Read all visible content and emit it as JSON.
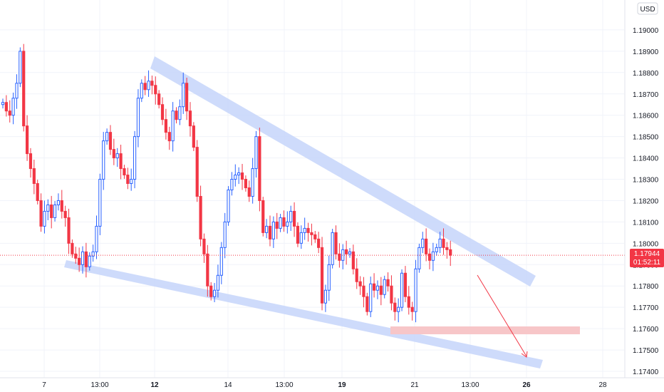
{
  "currency_button": "USD",
  "price_tag": {
    "price": "1.17944",
    "countdown": "01:52:11",
    "color": "#f23645"
  },
  "colors": {
    "up": "#2962ff",
    "down": "#f23645",
    "channel": "#c5d5fa",
    "zone": "#f7c6c8",
    "arrow": "#f23645",
    "grid": "#f0f3fa"
  },
  "chart_data": {
    "type": "candlestick",
    "y_ticks": [
      "1.17400",
      "1.17500",
      "1.17600",
      "1.17700",
      "1.17800",
      "1.17900",
      "1.18000",
      "1.18100",
      "1.18200",
      "1.18300",
      "1.18400",
      "1.18500",
      "1.18600",
      "1.18700",
      "1.18800",
      "1.18900",
      "1.19000"
    ],
    "x_ticks": [
      {
        "label": "7",
        "bold": false
      },
      {
        "label": "13:00",
        "bold": false
      },
      {
        "label": "12",
        "bold": true
      },
      {
        "label": "14",
        "bold": false
      },
      {
        "label": "13:00",
        "bold": false
      },
      {
        "label": "19",
        "bold": true
      },
      {
        "label": "21",
        "bold": false
      },
      {
        "label": "13:00",
        "bold": false
      },
      {
        "label": "26",
        "bold": true
      },
      {
        "label": "28",
        "bold": false
      }
    ],
    "ylim": [
      1.1737,
      1.1914
    ],
    "last_price": 1.17944,
    "candle_closes": [
      1.1866,
      1.1862,
      1.186,
      1.1868,
      1.1875,
      1.189,
      1.1855,
      1.1842,
      1.1835,
      1.1828,
      1.182,
      1.1808,
      1.1815,
      1.1818,
      1.1812,
      1.1818,
      1.182,
      1.1815,
      1.1812,
      1.18,
      1.1795,
      1.1793,
      1.179,
      1.1796,
      1.1789,
      1.1794,
      1.1796,
      1.1808,
      1.183,
      1.1848,
      1.1852,
      1.1844,
      1.184,
      1.1842,
      1.1835,
      1.1832,
      1.1828,
      1.183,
      1.185,
      1.1868,
      1.1875,
      1.1872,
      1.1876,
      1.1874,
      1.187,
      1.1865,
      1.1858,
      1.1852,
      1.1848,
      1.1862,
      1.1858,
      1.1864,
      1.1875,
      1.1862,
      1.1855,
      1.1845,
      1.1822,
      1.1802,
      1.1795,
      1.178,
      1.1775,
      1.1778,
      1.1785,
      1.1798,
      1.181,
      1.1825,
      1.183,
      1.1832,
      1.1833,
      1.183,
      1.1826,
      1.1822,
      1.1835,
      1.185,
      1.182,
      1.1805,
      1.1808,
      1.1802,
      1.181,
      1.1807,
      1.1812,
      1.1808,
      1.181,
      1.1815,
      1.1808,
      1.18,
      1.1805,
      1.1807,
      1.1805,
      1.1804,
      1.1802,
      1.1798,
      1.1772,
      1.1778,
      1.179,
      1.1805,
      1.1795,
      1.1792,
      1.1797,
      1.1795,
      1.1796,
      1.1788,
      1.1782,
      1.178,
      1.1775,
      1.1768,
      1.1781,
      1.1778,
      1.178,
      1.1776,
      1.1783,
      1.178,
      1.1772,
      1.1768,
      1.177,
      1.1786,
      1.1775,
      1.177,
      1.1768,
      1.1788,
      1.1798,
      1.1802,
      1.1795,
      1.1792,
      1.1796,
      1.1798,
      1.1802,
      1.1798,
      1.1797,
      1.17944
    ]
  }
}
